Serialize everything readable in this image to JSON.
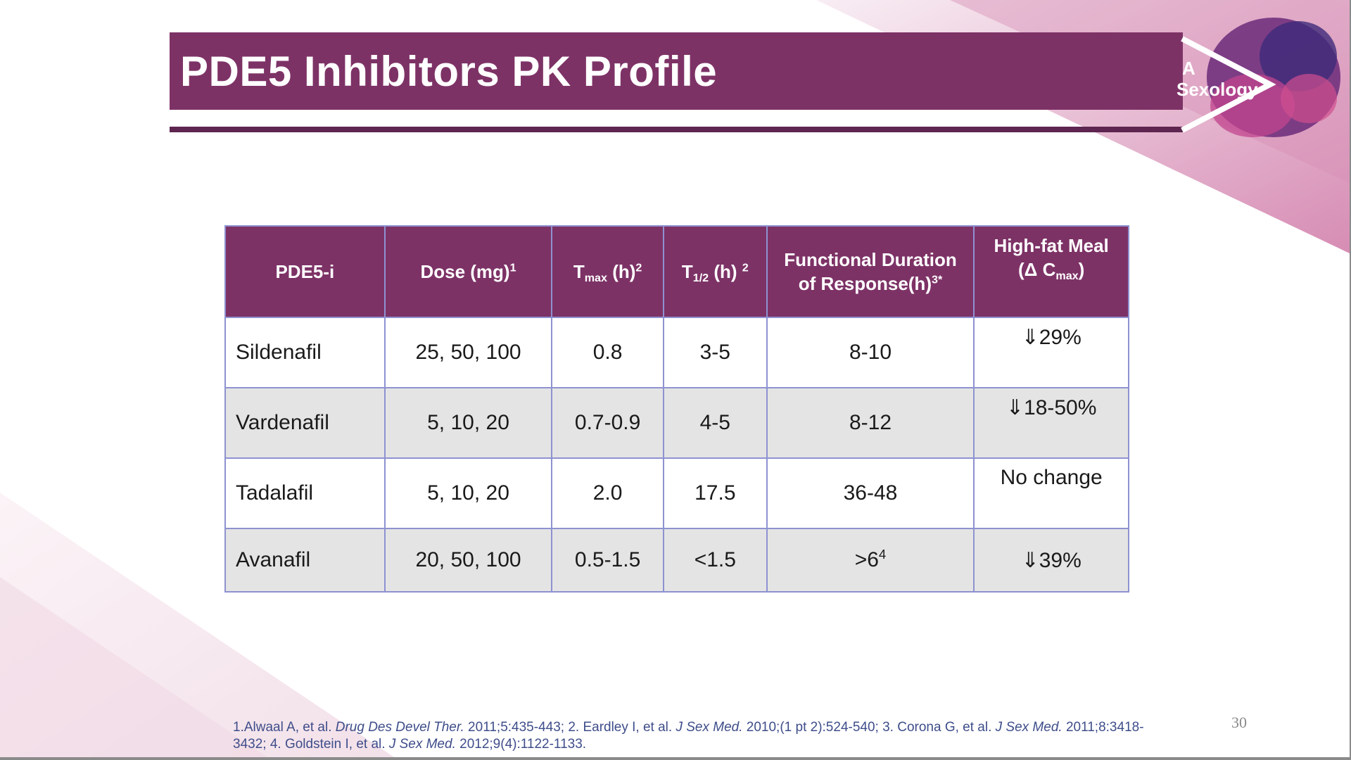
{
  "slide": {
    "title": "PDE5 Inhibitors PK Profile",
    "logo_line1": "A",
    "logo_line2": "Sexology",
    "page_number": "30"
  },
  "table": {
    "headers": {
      "drug": "PDE5-i",
      "dose": {
        "text": "Dose (mg)",
        "sup": "1"
      },
      "tmax": {
        "main": "T",
        "sub": "max",
        "rest": " (h)",
        "sup": "2"
      },
      "thalf": {
        "main": "T",
        "sub": "1/2",
        "rest": " (h) ",
        "sup": "2"
      },
      "duration": {
        "line1": "Functional Duration",
        "line2": "of Response(h)",
        "sup": "3*"
      },
      "meal": {
        "line1": "High-fat Meal",
        "line2_pre": "(Δ C",
        "sub": "max",
        "line2_post": ")"
      }
    },
    "rows": [
      {
        "name": "Sildenafil",
        "dose": "25, 50, 100",
        "tmax": "0.8",
        "thalf": "3-5",
        "duration": "8-10",
        "duration_sup": "",
        "meal": "⇓29%"
      },
      {
        "name": "Vardenafil",
        "dose": "5, 10, 20",
        "tmax": "0.7-0.9",
        "thalf": "4-5",
        "duration": "8-12",
        "duration_sup": "",
        "meal": "⇓18-50%"
      },
      {
        "name": "Tadalafil",
        "dose": "5, 10, 20",
        "tmax": "2.0",
        "thalf": "17.5",
        "duration": "36-48",
        "duration_sup": "",
        "meal": "No change"
      },
      {
        "name": "Avanafil",
        "dose": "20, 50, 100",
        "tmax": "0.5-1.5",
        "thalf": "<1.5",
        "duration": ">6",
        "duration_sup": "4",
        "meal": "⇓39%"
      }
    ]
  },
  "references": {
    "r1_a": "1.Alwaal A, et al. ",
    "r1_j": "Drug Des Devel Ther.",
    "r1_b": " 2011;5:435-443; 2. Eardley I, et al. ",
    "r2_j": "J Sex Med.",
    "r2_b": " 2010;(1 pt 2):524-540; 3. Corona G, et al. ",
    "r3_j": "J Sex Med.",
    "r3_b": " 2011;8:3418-3432; 4. Goldstein I, et al. ",
    "r4_j": "J Sex Med.",
    "r4_b": " 2012;9(4):1122-1133."
  },
  "colors": {
    "title_bar": "#7d3266",
    "header_bg": "#7d3266",
    "table_border": "#8e92d0",
    "alt_row": "#e4e4e4",
    "reference_text": "#3e4d8a"
  }
}
